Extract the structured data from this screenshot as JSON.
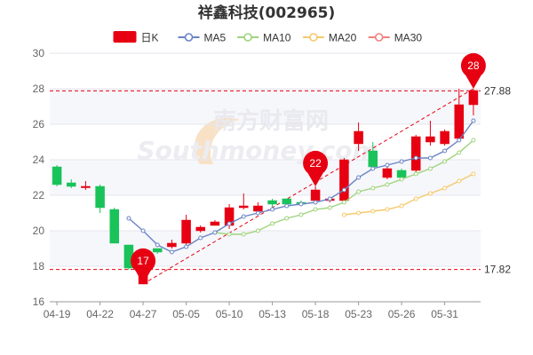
{
  "chart_data": {
    "type": "candlestick",
    "title": "祥鑫科技(002965)",
    "legend": [
      {
        "key": "kline",
        "label": "日K",
        "color": "#e60012"
      },
      {
        "key": "ma5",
        "label": "MA5",
        "color": "#6a84c6"
      },
      {
        "key": "ma10",
        "label": "MA10",
        "color": "#9fd37c"
      },
      {
        "key": "ma20",
        "label": "MA20",
        "color": "#f5c96b"
      },
      {
        "key": "ma30",
        "label": "MA30",
        "color": "#f08080"
      }
    ],
    "legend_position": "top",
    "ylim": [
      16,
      30
    ],
    "yticks": [
      16,
      18,
      20,
      22,
      24,
      26,
      28,
      30
    ],
    "xtick_labels": [
      "04-19",
      "04-22",
      "04-27",
      "05-05",
      "05-10",
      "05-13",
      "05-18",
      "05-23",
      "05-26",
      "05-31"
    ],
    "xtick_indices": [
      0,
      3,
      6,
      9,
      12,
      15,
      18,
      21,
      24,
      27
    ],
    "grid": "horizontal",
    "up_color": "#e60012",
    "down_color": "#19c35a",
    "candles": [
      {
        "o": 23.6,
        "c": 22.6,
        "h": 23.7,
        "l": 22.5
      },
      {
        "o": 22.7,
        "c": 22.5,
        "h": 22.9,
        "l": 22.4
      },
      {
        "o": 22.5,
        "c": 22.5,
        "h": 22.8,
        "l": 22.3
      },
      {
        "o": 22.5,
        "c": 21.3,
        "h": 22.6,
        "l": 21.0
      },
      {
        "o": 21.2,
        "c": 19.3,
        "h": 21.3,
        "l": 19.3
      },
      {
        "o": 19.2,
        "c": 17.9,
        "h": 19.2,
        "l": 17.8
      },
      {
        "o": 17.0,
        "c": 18.6,
        "h": 18.8,
        "l": 17.0
      },
      {
        "o": 19.0,
        "c": 18.8,
        "h": 19.0,
        "l": 18.7
      },
      {
        "o": 19.1,
        "c": 19.3,
        "h": 19.5,
        "l": 19.0
      },
      {
        "o": 19.3,
        "c": 20.6,
        "h": 20.9,
        "l": 19.1
      },
      {
        "o": 20.0,
        "c": 20.2,
        "h": 20.3,
        "l": 19.9
      },
      {
        "o": 20.3,
        "c": 20.5,
        "h": 20.6,
        "l": 20.3
      },
      {
        "o": 20.3,
        "c": 21.3,
        "h": 21.5,
        "l": 20.1
      },
      {
        "o": 21.3,
        "c": 21.4,
        "h": 22.1,
        "l": 21.2
      },
      {
        "o": 21.1,
        "c": 21.4,
        "h": 21.6,
        "l": 21.0
      },
      {
        "o": 21.7,
        "c": 21.5,
        "h": 21.8,
        "l": 21.2
      },
      {
        "o": 21.8,
        "c": 21.5,
        "h": 21.8,
        "l": 21.3
      },
      {
        "o": 21.6,
        "c": 21.5,
        "h": 21.7,
        "l": 21.4
      },
      {
        "o": 21.7,
        "c": 22.3,
        "h": 22.5,
        "l": 21.7
      },
      {
        "o": 21.7,
        "c": 21.8,
        "h": 21.9,
        "l": 21.6
      },
      {
        "o": 21.7,
        "c": 24.0,
        "h": 24.1,
        "l": 21.7
      },
      {
        "o": 24.9,
        "c": 25.6,
        "h": 26.1,
        "l": 24.5
      },
      {
        "o": 24.5,
        "c": 23.6,
        "h": 25.0,
        "l": 23.4
      },
      {
        "o": 23.0,
        "c": 23.5,
        "h": 23.6,
        "l": 22.9
      },
      {
        "o": 23.4,
        "c": 23.0,
        "h": 23.5,
        "l": 22.9
      },
      {
        "o": 23.4,
        "c": 25.3,
        "h": 25.4,
        "l": 23.3
      },
      {
        "o": 25.0,
        "c": 25.3,
        "h": 26.2,
        "l": 24.8
      },
      {
        "o": 24.9,
        "c": 25.6,
        "h": 25.7,
        "l": 24.8
      },
      {
        "o": 25.2,
        "c": 27.1,
        "h": 28.0,
        "l": 25.1
      },
      {
        "o": 27.1,
        "c": 27.9,
        "h": 28.0,
        "l": 26.5
      }
    ],
    "ma5": [
      null,
      null,
      null,
      null,
      null,
      20.7,
      20.0,
      19.2,
      18.8,
      19.1,
      19.6,
      19.9,
      20.4,
      20.8,
      21.0,
      21.2,
      21.4,
      21.5,
      21.6,
      21.8,
      22.3,
      23.0,
      23.5,
      23.7,
      23.9,
      24.1,
      24.1,
      24.5,
      25.1,
      26.2
    ],
    "ma10": [
      null,
      null,
      null,
      null,
      null,
      null,
      null,
      null,
      null,
      null,
      null,
      19.9,
      19.8,
      19.8,
      20.0,
      20.4,
      20.7,
      20.9,
      21.2,
      21.3,
      21.6,
      22.2,
      22.4,
      22.6,
      22.9,
      23.2,
      23.5,
      23.9,
      24.4,
      25.1
    ],
    "ma20": [
      null,
      null,
      null,
      null,
      null,
      null,
      null,
      null,
      null,
      null,
      null,
      null,
      null,
      null,
      null,
      null,
      null,
      null,
      null,
      null,
      20.9,
      21.0,
      21.1,
      21.2,
      21.4,
      21.8,
      22.1,
      22.4,
      22.8,
      23.2
    ],
    "ma30": [],
    "ref_lines": [
      {
        "value": 27.88,
        "label": "27.88"
      },
      {
        "value": 17.82,
        "label": "17.82"
      }
    ],
    "trend_line": {
      "from_index": 6,
      "from_value": 17.0,
      "to_index": 29,
      "to_value": 28.0
    },
    "pins": [
      {
        "index": 6,
        "value": 17.0,
        "label": "17"
      },
      {
        "index": 18,
        "value": 22.5,
        "label": "22"
      },
      {
        "index": 29,
        "value": 28.0,
        "label": "28"
      }
    ],
    "watermark": {
      "text": "南方财富网",
      "latin": "Southmoney.com"
    }
  }
}
